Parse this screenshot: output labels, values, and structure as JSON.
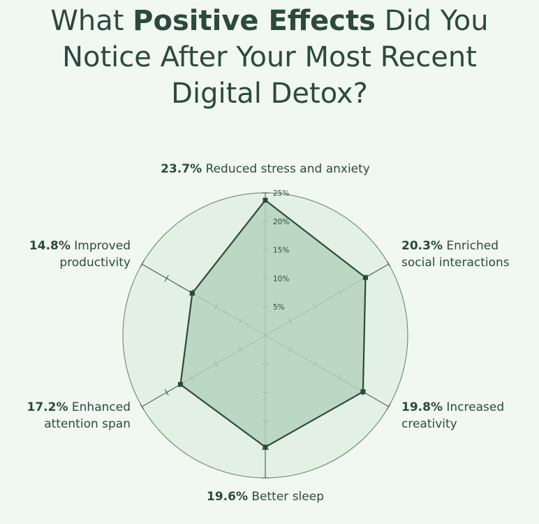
{
  "title": {
    "pre": "What ",
    "bold": "Positive Effects",
    "post": " Did You",
    "line2": "Notice After Your Most Recent",
    "line3": "Digital Detox?"
  },
  "chart_data": {
    "type": "radar",
    "rlim": [
      0,
      25
    ],
    "ticks": [
      5,
      10,
      15,
      20,
      25
    ],
    "tick_labels": [
      "5%",
      "10%",
      "15%",
      "20%",
      "25%"
    ],
    "categories": [
      "Reduced stress and anxiety",
      "Enriched social interactions",
      "Increased creativity",
      "Better sleep",
      "Enhanced attention span",
      "Improved productivity"
    ],
    "values": [
      23.7,
      20.3,
      19.8,
      19.6,
      17.2,
      14.8
    ],
    "value_labels": [
      "23.7%",
      "20.3%",
      "19.8%",
      "19.6%",
      "17.2%",
      "14.8%"
    ],
    "colors": {
      "background": "#f1f8f1",
      "disc": "#e3f1e5",
      "fill": "#b5d2bc",
      "line": "#2c4a3c"
    }
  }
}
